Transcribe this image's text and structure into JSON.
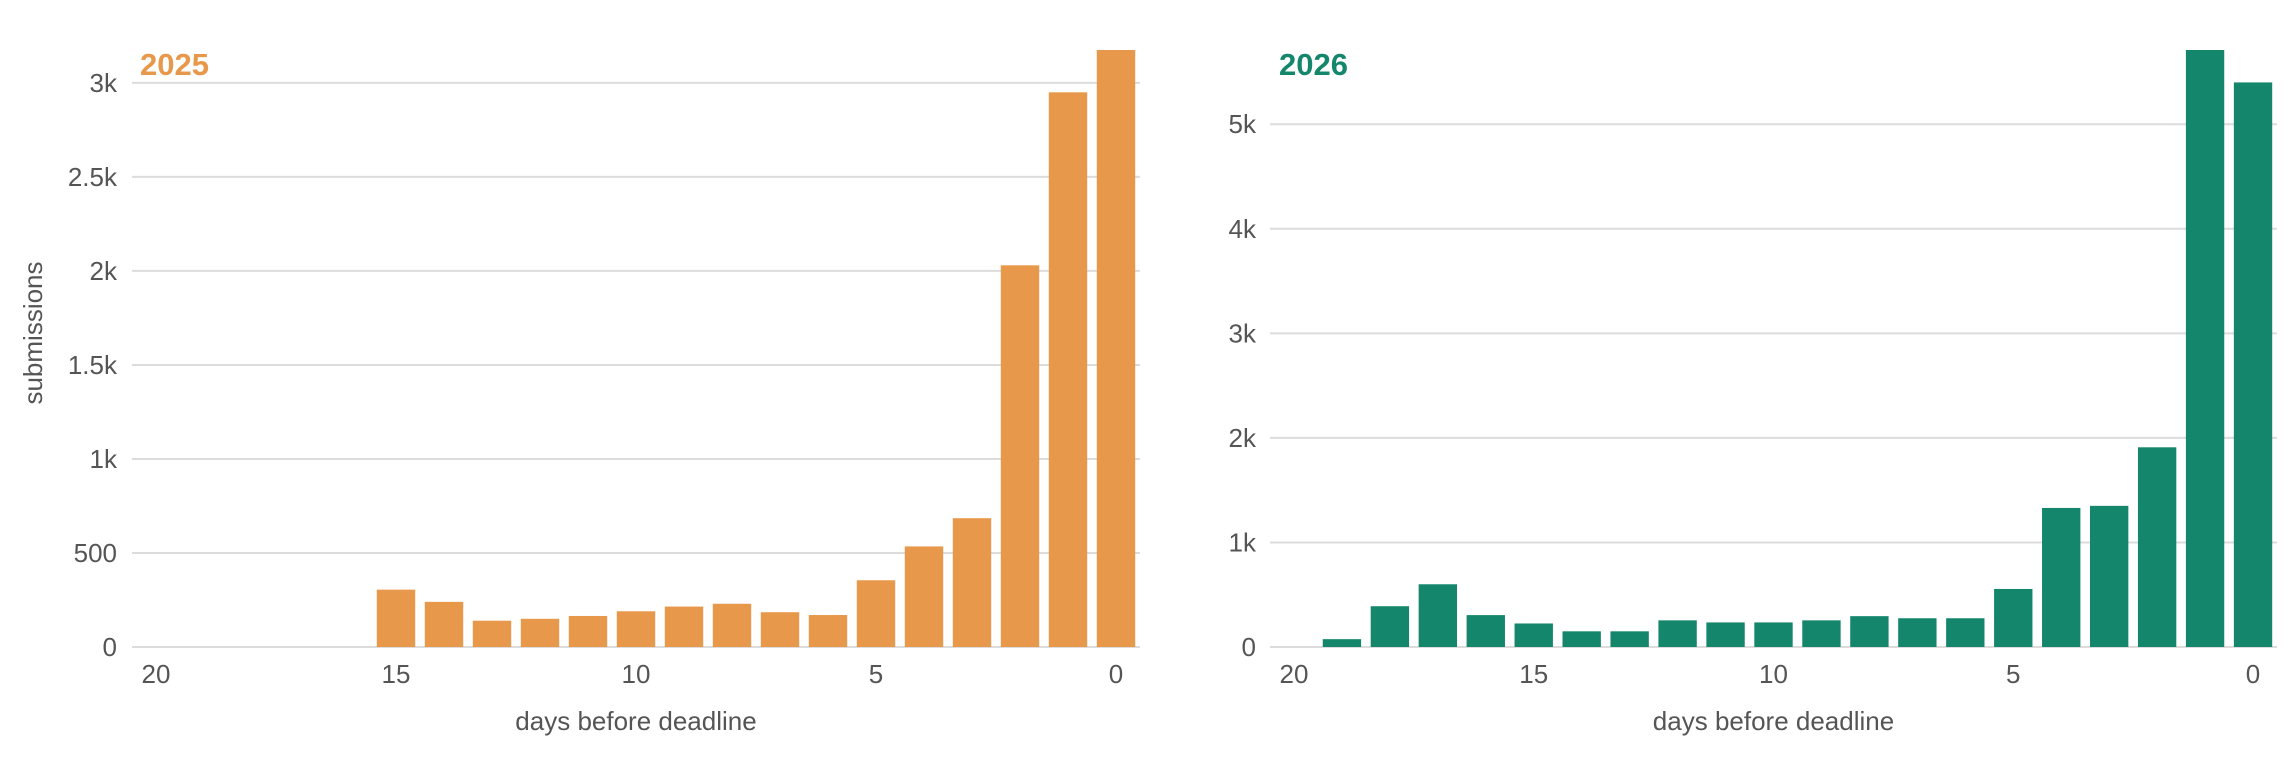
{
  "chart_data": [
    {
      "type": "bar",
      "title": "2025",
      "color": "#E8984A",
      "xlabel": "days before deadline",
      "ylabel": "submissions",
      "x": [
        20,
        19,
        18,
        17,
        16,
        15,
        14,
        13,
        12,
        11,
        10,
        9,
        8,
        7,
        6,
        5,
        4,
        3,
        2,
        1,
        0
      ],
      "values": [
        0,
        0,
        0,
        0,
        0,
        305,
        240,
        140,
        150,
        165,
        190,
        215,
        230,
        185,
        170,
        355,
        535,
        685,
        2030,
        2950,
        3175
      ],
      "x_ticks": [
        20,
        15,
        10,
        5,
        0
      ],
      "x_tick_labels": [
        "20",
        "15",
        "10",
        "5",
        "0"
      ],
      "y_ticks": [
        0,
        500,
        1000,
        1500,
        2000,
        2500,
        3000
      ],
      "y_tick_labels": [
        "0",
        "500",
        "1k",
        "1.5k",
        "2k",
        "2.5k",
        "3k"
      ],
      "ylim": [
        0,
        3175
      ],
      "xlim": [
        20.5,
        -0.5
      ],
      "grid": true
    },
    {
      "type": "bar",
      "title": "2026",
      "color": "#14866B",
      "xlabel": "days before deadline",
      "ylabel": "",
      "x": [
        20,
        19,
        18,
        17,
        16,
        15,
        14,
        13,
        12,
        11,
        10,
        9,
        8,
        7,
        6,
        5,
        4,
        3,
        2,
        1,
        0
      ],
      "values": [
        0,
        75,
        390,
        600,
        305,
        225,
        150,
        150,
        255,
        235,
        235,
        255,
        295,
        275,
        275,
        555,
        1330,
        1350,
        1910,
        5710,
        5400
      ],
      "x_ticks": [
        20,
        15,
        10,
        5,
        0
      ],
      "x_tick_labels": [
        "20",
        "15",
        "10",
        "5",
        "0"
      ],
      "y_ticks": [
        0,
        1000,
        2000,
        3000,
        4000,
        5000
      ],
      "y_tick_labels": [
        "0",
        "1k",
        "2k",
        "3k",
        "4k",
        "5k"
      ],
      "ylim": [
        0,
        5710
      ],
      "xlim": [
        20.5,
        -0.5
      ],
      "grid": true
    }
  ]
}
